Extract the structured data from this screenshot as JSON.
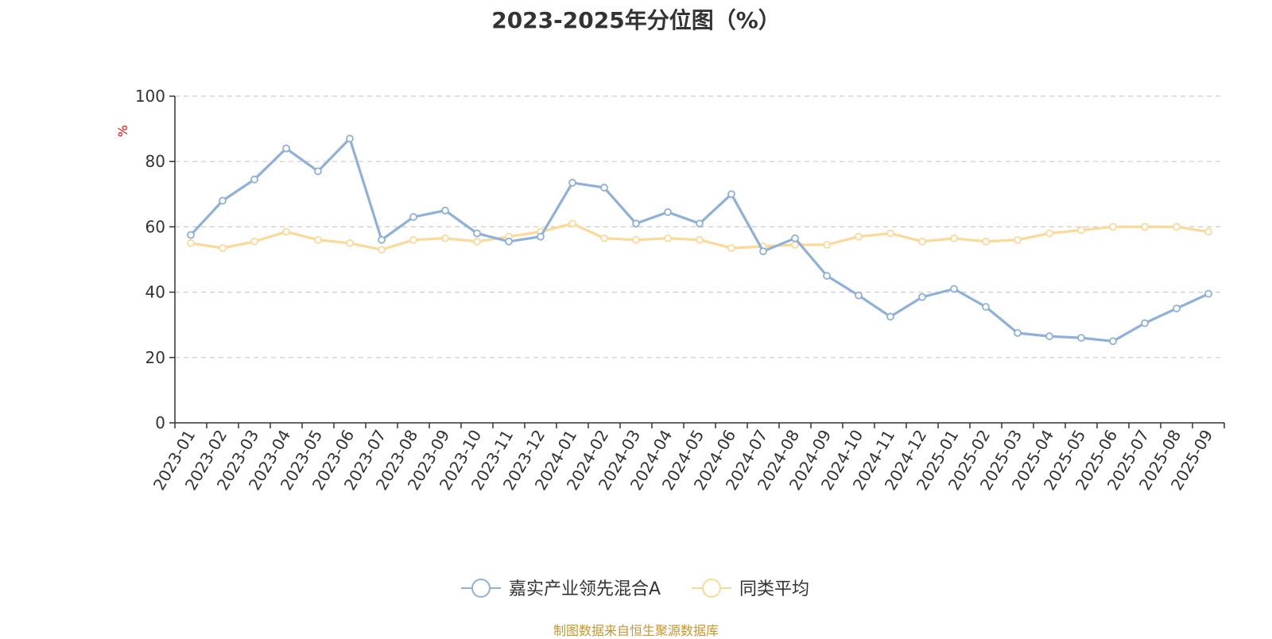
{
  "source_note": "制图数据来自恒生聚源数据库",
  "colors": {
    "series1": "#8eb0db",
    "series2": "#fcd998",
    "unit": "#ff0000",
    "source": "#c8962e",
    "grid": "#cccccc",
    "axis": "#333333"
  },
  "chart_data": {
    "type": "line",
    "title": "2023-2025年分位图（%）",
    "ylabel": "%",
    "ylim": [
      0,
      100
    ],
    "yticks": [
      0,
      20,
      40,
      60,
      80,
      100
    ],
    "grid": "horizontal-dashed",
    "legend_position": "bottom",
    "categories": [
      "2023-01",
      "2023-02",
      "2023-03",
      "2023-04",
      "2023-05",
      "2023-06",
      "2023-07",
      "2023-08",
      "2023-09",
      "2023-10",
      "2023-11",
      "2023-12",
      "2024-01",
      "2024-02",
      "2024-03",
      "2024-04",
      "2024-05",
      "2024-06",
      "2024-07",
      "2024-08",
      "2024-09",
      "2024-10",
      "2024-11",
      "2024-12",
      "2025-01",
      "2025-02",
      "2025-03",
      "2025-04",
      "2025-05",
      "2025-06",
      "2025-07",
      "2025-08",
      "2025-09"
    ],
    "series": [
      {
        "name": "嘉实产业领先混合A",
        "values": [
          57.5,
          68,
          74.5,
          84,
          77,
          87,
          56,
          63,
          65,
          58,
          55.5,
          57,
          73.5,
          72,
          61,
          64.5,
          61,
          70,
          52.5,
          56.5,
          45,
          39,
          32.5,
          38.5,
          41,
          35.5,
          27.5,
          26.5,
          26,
          25,
          30.5,
          35,
          39.5
        ]
      },
      {
        "name": "同类平均",
        "values": [
          55,
          53.5,
          55.5,
          58.5,
          56,
          55,
          53,
          56,
          56.5,
          55.5,
          57,
          58.5,
          61,
          56.5,
          56,
          56.5,
          56,
          53.5,
          54,
          54.5,
          54.5,
          57,
          58,
          55.5,
          56.5,
          55.5,
          56,
          58,
          59,
          60,
          60,
          60,
          58.5
        ]
      }
    ]
  }
}
